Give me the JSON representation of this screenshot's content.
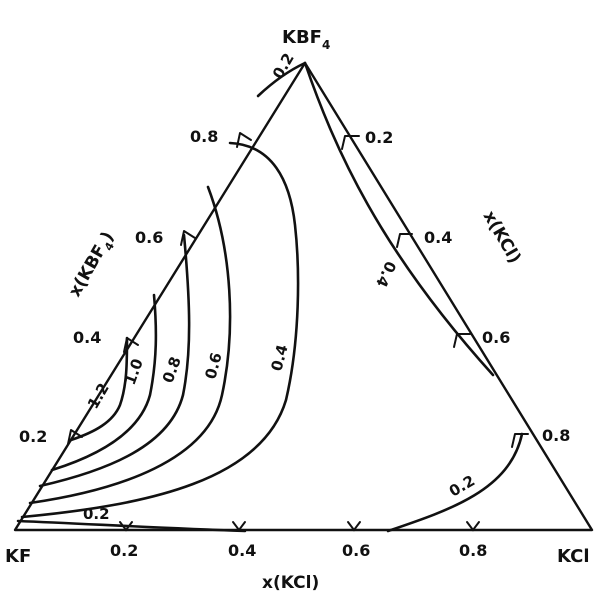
{
  "corners": {
    "top": "KBF",
    "top_sub": "4",
    "left": "KF",
    "right": "KCl"
  },
  "axes": {
    "bottom": "x(KCl)",
    "left": "x(KBF",
    "left_sub": "4",
    "left_tail": ")",
    "right": "x(KCl)"
  },
  "ticks": {
    "bottom": [
      "0.2",
      "0.4",
      "0.6",
      "0.8"
    ],
    "left": [
      "0.2",
      "0.4",
      "0.6",
      "0.8"
    ],
    "right": [
      "0.2",
      "0.4",
      "0.6",
      "0.8"
    ]
  },
  "isoline_labels": {
    "i12": "1.2",
    "i10": "1.0",
    "i08": "0.8",
    "i06": "0.6",
    "i04": "0.4",
    "i02_bottom": "0.2",
    "i02_right": "0.2",
    "i02_top": "0.2",
    "i04_right": "0.4"
  },
  "colors": {
    "ink": "#111111",
    "background": "#ffffff"
  }
}
